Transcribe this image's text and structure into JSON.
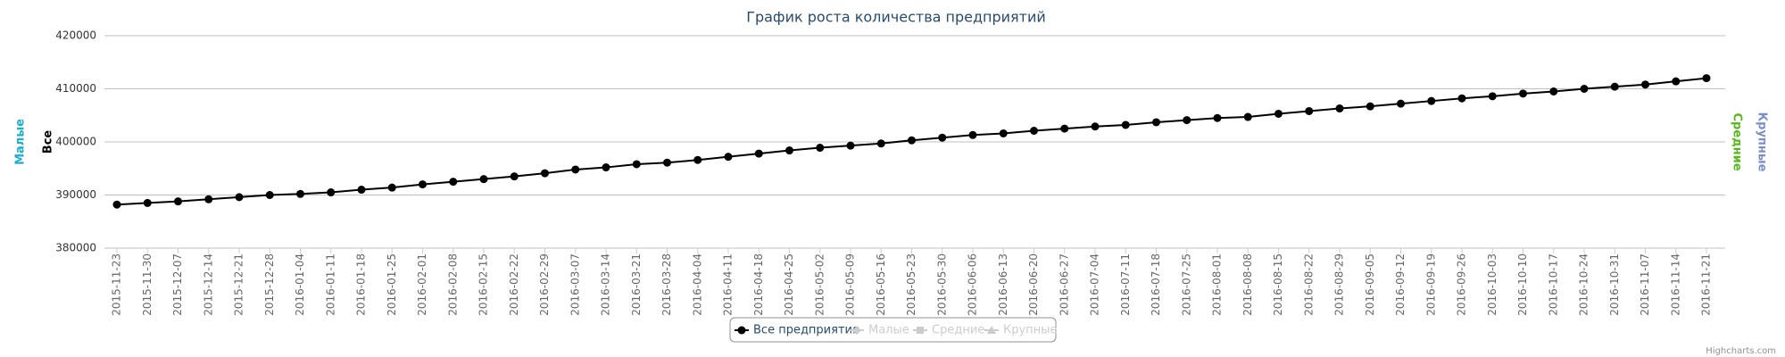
{
  "chart_data": {
    "type": "line",
    "title": "График роста количества предприятий",
    "categories": [
      "2015-11-23",
      "2015-11-30",
      "2015-12-07",
      "2015-12-14",
      "2015-12-21",
      "2015-12-28",
      "2016-01-04",
      "2016-01-11",
      "2016-01-18",
      "2016-01-25",
      "2016-02-01",
      "2016-02-08",
      "2016-02-15",
      "2016-02-22",
      "2016-02-29",
      "2016-03-07",
      "2016-03-14",
      "2016-03-21",
      "2016-03-28",
      "2016-04-04",
      "2016-04-11",
      "2016-04-18",
      "2016-04-25",
      "2016-05-02",
      "2016-05-09",
      "2016-05-16",
      "2016-05-23",
      "2016-05-30",
      "2016-06-06",
      "2016-06-13",
      "2016-06-20",
      "2016-06-27",
      "2016-07-04",
      "2016-07-11",
      "2016-07-18",
      "2016-07-25",
      "2016-08-01",
      "2016-08-08",
      "2016-08-15",
      "2016-08-22",
      "2016-08-29",
      "2016-09-05",
      "2016-09-12",
      "2016-09-19",
      "2016-09-26",
      "2016-10-03",
      "2016-10-10",
      "2016-10-17",
      "2016-10-24",
      "2016-10-31",
      "2016-11-07",
      "2016-11-14",
      "2016-11-21"
    ],
    "series": [
      {
        "name": "Все предприятия",
        "color": "#000000",
        "values": [
          388200,
          388500,
          388800,
          389200,
          389600,
          390000,
          390200,
          390500,
          391000,
          391400,
          392000,
          392500,
          393000,
          393500,
          394100,
          394800,
          395200,
          395800,
          396100,
          396600,
          397200,
          397800,
          398400,
          398900,
          399300,
          399700,
          400300,
          400800,
          401300,
          401600,
          402100,
          402500,
          402900,
          403200,
          403700,
          404100,
          404500,
          404700,
          405300,
          405800,
          406300,
          406700,
          407200,
          407700,
          408200,
          408600,
          409100,
          409500,
          410000,
          410400,
          410800,
          411400,
          412000
        ]
      }
    ],
    "legend": [
      {
        "name": "Все предприятия",
        "color": "#000000",
        "visible": true,
        "symbol": "circle"
      },
      {
        "name": "Малые",
        "color": "#cccccc",
        "visible": false,
        "symbol": "diamond"
      },
      {
        "name": "Средние",
        "color": "#cccccc",
        "visible": false,
        "symbol": "square"
      },
      {
        "name": "Крупные",
        "color": "#cccccc",
        "visible": false,
        "symbol": "triangle"
      }
    ],
    "axis_titles": [
      {
        "text": "Малые",
        "color": "#1aadce",
        "side": "left"
      },
      {
        "text": "Все",
        "color": "#000000",
        "side": "left"
      },
      {
        "text": "Средние",
        "color": "#57b81e",
        "side": "right"
      },
      {
        "text": "Крупные",
        "color": "#7a8fc9",
        "side": "right"
      }
    ],
    "ylim": [
      380000,
      420000
    ],
    "yticks": [
      380000,
      390000,
      400000,
      410000,
      420000
    ],
    "grid": true,
    "credit": "Highcharts.com"
  }
}
